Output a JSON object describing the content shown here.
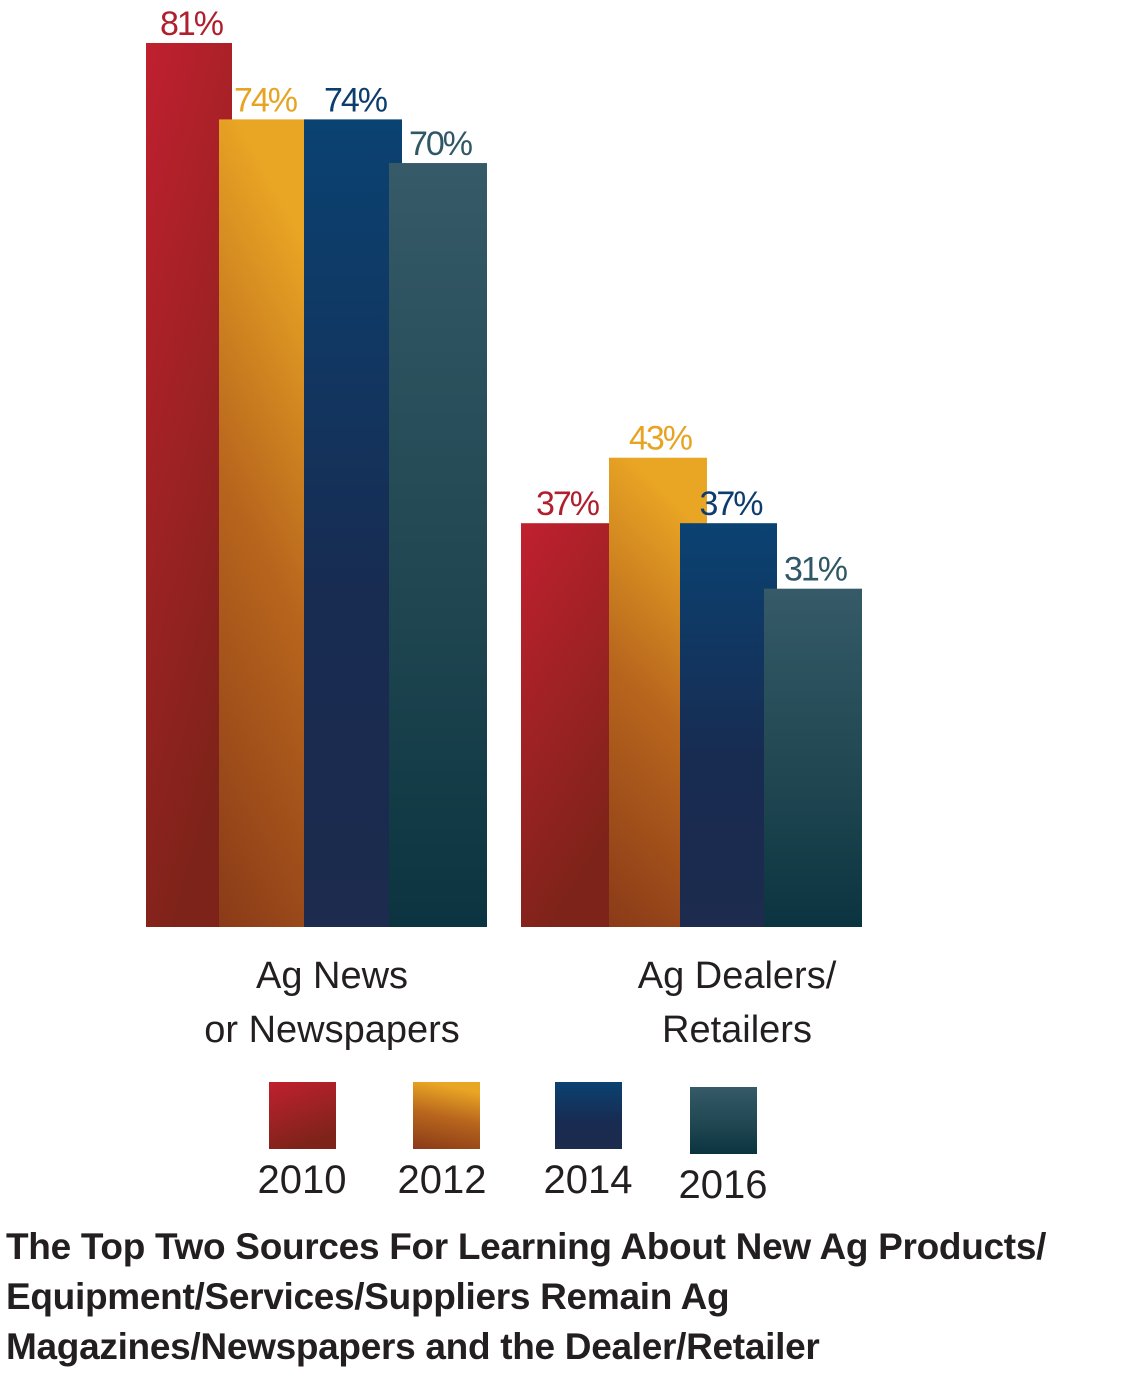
{
  "chart_data": {
    "type": "bar",
    "categories": [
      "Ag News or Newspapers",
      "Ag Dealers/ Retailers"
    ],
    "category_lines": [
      [
        "Ag News",
        "or Newspapers"
      ],
      [
        "Ag Dealers/",
        "Retailers"
      ]
    ],
    "series": [
      {
        "name": "2010",
        "values": [
          81,
          37
        ],
        "labels": [
          "81%",
          "37%"
        ],
        "color": "#b01f2e"
      },
      {
        "name": "2012",
        "values": [
          74,
          43
        ],
        "labels": [
          "74%",
          "43%"
        ],
        "color": "#e7a322"
      },
      {
        "name": "2014",
        "values": [
          74,
          37
        ],
        "labels": [
          "74%",
          "37%"
        ],
        "color": "#0d3d6e"
      },
      {
        "name": "2016",
        "values": [
          70,
          31
        ],
        "labels": [
          "70%",
          "31%"
        ],
        "color": "#2f5766"
      }
    ],
    "ylim": [
      0,
      81
    ],
    "grid": false,
    "legend_position": "bottom",
    "title": "The Top Two Sources For Learning About New Ag Products/ Equipment/Services/Suppliers Remain Ag Magazines/Newspapers and the Dealer/Retailer"
  }
}
